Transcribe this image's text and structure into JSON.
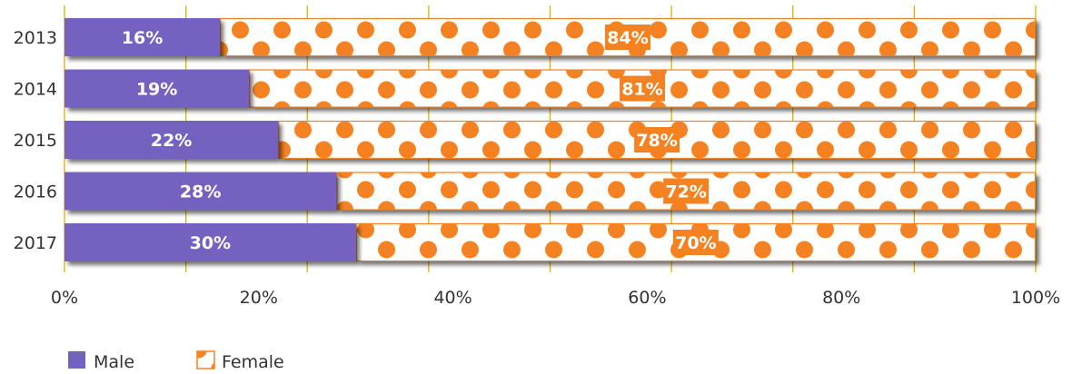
{
  "chart_data": {
    "type": "bar",
    "orientation": "horizontal",
    "stacked": "percent",
    "categories": [
      "2013",
      "2014",
      "2015",
      "2016",
      "2017"
    ],
    "series": [
      {
        "name": "Male",
        "values": [
          16,
          19,
          22,
          28,
          30
        ],
        "labels": [
          "16%",
          "19%",
          "22%",
          "28%",
          "30%"
        ],
        "color": "#7462c0",
        "fill": "solid"
      },
      {
        "name": "Female",
        "values": [
          84,
          81,
          78,
          72,
          70
        ],
        "labels": [
          "84%",
          "81%",
          "78%",
          "72%",
          "70%"
        ],
        "color": "#f58220",
        "fill": "dot-pattern"
      }
    ],
    "x_ticks": [
      "0%",
      "20%",
      "40%",
      "60%",
      "80%",
      "100%"
    ],
    "xlim": [
      0,
      100
    ],
    "grid": true,
    "legend": "bottom-left",
    "colors": {
      "male": "#7462c0",
      "female": "#f58220",
      "grid": "#e0b000"
    }
  }
}
